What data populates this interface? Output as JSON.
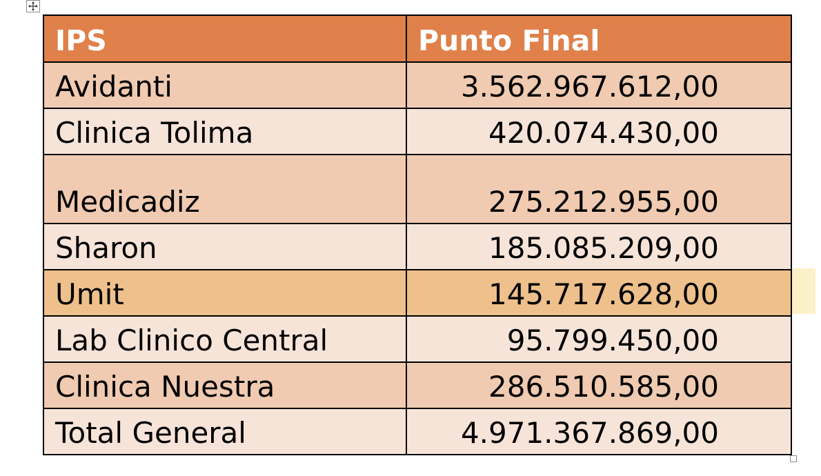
{
  "table": {
    "headers": {
      "ips": "IPS",
      "punto_final": "Punto Final"
    },
    "rows": [
      {
        "ips": "Avidanti",
        "punto_final": "3.562.967.612,00"
      },
      {
        "ips": "Clinica Tolima",
        "punto_final": "420.074.430,00"
      },
      {
        "ips": "Medicadiz",
        "punto_final": "275.212.955,00"
      },
      {
        "ips": "Sharon",
        "punto_final": "185.085.209,00"
      },
      {
        "ips": "Umit",
        "punto_final": "145.717.628,00"
      },
      {
        "ips": "Lab Clinico Central",
        "punto_final": "95.799.450,00"
      },
      {
        "ips": "Clinica Nuestra",
        "punto_final": "286.510.585,00"
      },
      {
        "ips": "Total General",
        "punto_final": "4.971.367.869,00"
      }
    ]
  },
  "colors": {
    "header_bg": "#e0804a",
    "band_dark": "#f0cbb1",
    "band_light": "#f7e4d9",
    "highlight": "#eec08b"
  },
  "icons": {
    "move_handle": "move-arrows-icon",
    "resize_handle": "resize-square-icon"
  }
}
